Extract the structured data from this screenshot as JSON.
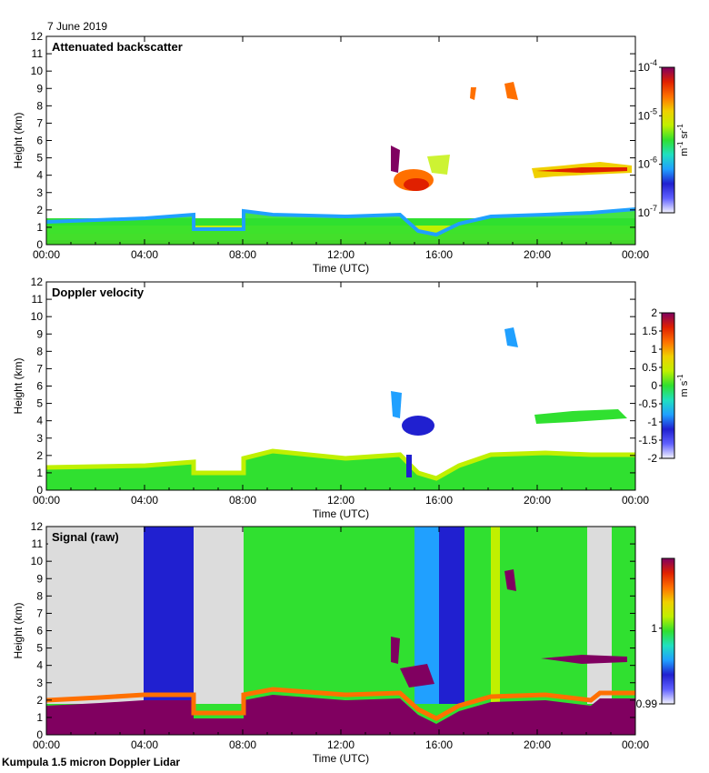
{
  "date_label": "7 June 2019",
  "footer": "Kumpula 1.5 micron Doppler Lidar",
  "colors": {
    "bar_stops": [
      "#f5f5ff",
      "#6060ff",
      "#2020d0",
      "#20a0ff",
      "#20e0c0",
      "#30e030",
      "#c0f000",
      "#f0d000",
      "#ff7000",
      "#e02000",
      "#800060"
    ],
    "purple": "#8b0a7a",
    "gray_fill": "#dcdcdc"
  },
  "chart_data": [
    {
      "type": "heatmap",
      "title": "Attenuated backscatter",
      "xlabel": "Time (UTC)",
      "ylabel": "Height (km)",
      "xticks": [
        "00:00",
        "04:00",
        "08:00",
        "12:00",
        "16:00",
        "20:00",
        "00:00"
      ],
      "yticks": [
        "0",
        "1",
        "2",
        "3",
        "4",
        "5",
        "6",
        "7",
        "8",
        "9",
        "10",
        "11",
        "12"
      ],
      "ylim": [
        0,
        12
      ],
      "xlim_hours": [
        0,
        24
      ],
      "colorbar": {
        "scale": "log",
        "ticks": [
          "10",
          "10",
          "10",
          "10"
        ],
        "exponents": [
          "-4",
          "-5",
          "-6",
          "-7"
        ],
        "unit": "m",
        "unit_exp1": "-1",
        "unit_mid": " sr",
        "unit_exp2": "-1"
      }
    },
    {
      "type": "heatmap",
      "title": "Doppler velocity",
      "xlabel": "Time (UTC)",
      "ylabel": "Height (km)",
      "xticks": [
        "00:00",
        "04:00",
        "08:00",
        "12:00",
        "16:00",
        "20:00",
        "00:00"
      ],
      "yticks": [
        "0",
        "1",
        "2",
        "3",
        "4",
        "5",
        "6",
        "7",
        "8",
        "9",
        "10",
        "11",
        "12"
      ],
      "ylim": [
        0,
        12
      ],
      "xlim_hours": [
        0,
        24
      ],
      "colorbar": {
        "scale": "linear",
        "ticks": [
          "2",
          "1.5",
          "1",
          "0.5",
          "0",
          "-0.5",
          "-1",
          "-1.5",
          "-2"
        ],
        "unit": "m",
        "unit_exp1": "",
        "unit_mid": " s",
        "unit_exp2": "-1"
      }
    },
    {
      "type": "heatmap",
      "title": "Signal (raw)",
      "xlabel": "Time (UTC)",
      "ylabel": "Height (km)",
      "xticks": [
        "00:00",
        "04:00",
        "08:00",
        "12:00",
        "16:00",
        "20:00",
        "00:00"
      ],
      "yticks": [
        "0",
        "1",
        "2",
        "3",
        "4",
        "5",
        "6",
        "7",
        "8",
        "9",
        "10",
        "11",
        "12"
      ],
      "ylim": [
        0,
        12
      ],
      "xlim_hours": [
        0,
        24
      ],
      "colorbar": {
        "scale": "linear",
        "ticks": [
          "1",
          "0.99"
        ]
      }
    }
  ]
}
